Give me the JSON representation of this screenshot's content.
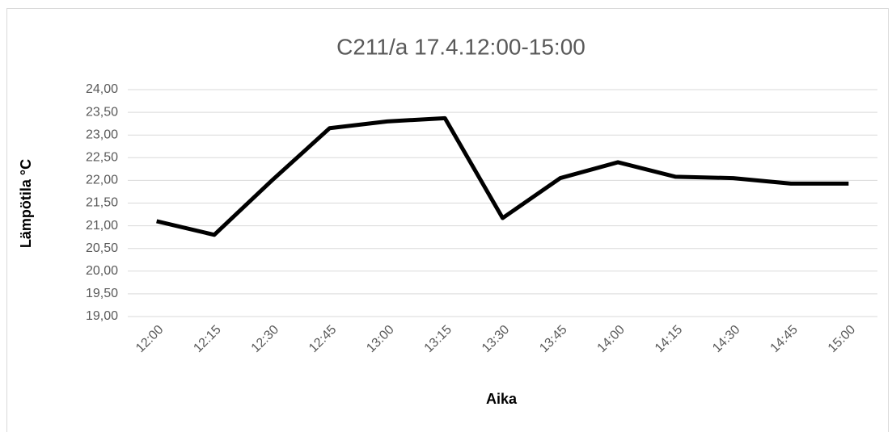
{
  "chart_data": {
    "type": "line",
    "title": "C211/a 17.4.12:00-15:00",
    "x_label": "Aika",
    "y_label": "Lämpötila °C",
    "categories": [
      "12:00",
      "12:15",
      "12:30",
      "12:45",
      "13:00",
      "13:15",
      "13:30",
      "13:45",
      "14:00",
      "14:15",
      "14:30",
      "14:45",
      "15:00"
    ],
    "series": [
      {
        "name": "C211/a",
        "color": "#000000",
        "values": [
          21.1,
          20.8,
          22.0,
          23.15,
          23.3,
          23.37,
          21.17,
          22.05,
          22.4,
          22.08,
          22.05,
          21.93,
          21.93
        ]
      }
    ],
    "ylim": [
      19,
      24
    ],
    "yticks": [
      {
        "value": 19,
        "label": "19,00"
      },
      {
        "value": 19.5,
        "label": "19,50"
      },
      {
        "value": 20,
        "label": "20,00"
      },
      {
        "value": 20.5,
        "label": "20,50"
      },
      {
        "value": 21,
        "label": "21,00"
      },
      {
        "value": 21.5,
        "label": "21,50"
      },
      {
        "value": 22,
        "label": "22,00"
      },
      {
        "value": 22.5,
        "label": "22,50"
      },
      {
        "value": 23,
        "label": "23,00"
      },
      {
        "value": 23.5,
        "label": "23,50"
      },
      {
        "value": 24,
        "label": "24,00"
      }
    ],
    "grid": true
  }
}
